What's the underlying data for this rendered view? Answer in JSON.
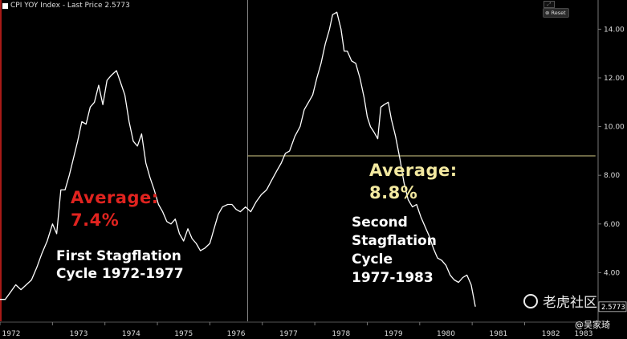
{
  "legend": {
    "label": "CPI YOY Index - Last Price 2.5773"
  },
  "controls": {
    "reset_label": "Reset"
  },
  "annotations": {
    "first_avg_label": "Average:",
    "first_avg_value": "7.4%",
    "first_cycle_line1": "First Stagflation",
    "first_cycle_line2": "Cycle 1972-1977",
    "second_avg_label": "Average:",
    "second_avg_value": "8.8%",
    "second_cycle_line1": "Second",
    "second_cycle_line2": "Stagflation",
    "second_cycle_line3": "Cycle",
    "second_cycle_line4": "1977-1983"
  },
  "watermark": {
    "text": "老虎社区",
    "handle": "@吴家琦"
  },
  "colors": {
    "line": "#ffffff",
    "first_highlight": "#e0231f",
    "second_highlight": "#f3e9a0",
    "average_line": "#d8d18a",
    "background": "#000000"
  },
  "chart_data": {
    "type": "line",
    "title": "",
    "xlabel": "",
    "ylabel": "",
    "x_ticks": [
      "1972",
      "1973",
      "1974",
      "1975",
      "1976",
      "1977",
      "1978",
      "1979",
      "1980",
      "1981",
      "1982",
      "1983"
    ],
    "y_ticks": [
      "4.00",
      "6.00",
      "8.00",
      "10.00",
      "12.00",
      "14.00"
    ],
    "ylim": [
      2.0,
      15.2
    ],
    "xlim": [
      1972.0,
      1983.4
    ],
    "last_price_label": "2.5773",
    "average_line": {
      "value": 8.8,
      "from_year": 1976.72,
      "to_year": 1983.35
    },
    "divider_year": 1976.72,
    "series": [
      {
        "values": [
          [
            1972.0,
            2.9
          ],
          [
            1972.1,
            2.9
          ],
          [
            1972.2,
            3.2
          ],
          [
            1972.3,
            3.5
          ],
          [
            1972.4,
            3.3
          ],
          [
            1972.5,
            3.5
          ],
          [
            1972.6,
            3.7
          ],
          [
            1972.7,
            4.2
          ],
          [
            1972.8,
            4.8
          ],
          [
            1972.9,
            5.3
          ],
          [
            1973.0,
            6.0
          ],
          [
            1973.08,
            5.6
          ],
          [
            1973.16,
            7.4
          ],
          [
            1973.24,
            7.4
          ],
          [
            1973.32,
            8.0
          ],
          [
            1973.4,
            8.7
          ],
          [
            1973.48,
            9.4
          ],
          [
            1973.56,
            10.2
          ],
          [
            1973.64,
            10.1
          ],
          [
            1973.72,
            10.8
          ],
          [
            1973.8,
            11.0
          ],
          [
            1973.88,
            11.7
          ],
          [
            1973.96,
            10.9
          ],
          [
            1974.04,
            11.9
          ],
          [
            1974.12,
            12.1
          ],
          [
            1974.22,
            12.3
          ],
          [
            1974.3,
            11.8
          ],
          [
            1974.38,
            11.3
          ],
          [
            1974.46,
            10.2
          ],
          [
            1974.54,
            9.4
          ],
          [
            1974.62,
            9.2
          ],
          [
            1974.7,
            9.7
          ],
          [
            1974.78,
            8.5
          ],
          [
            1974.86,
            7.9
          ],
          [
            1974.94,
            7.4
          ],
          [
            1975.02,
            6.8
          ],
          [
            1975.1,
            6.5
          ],
          [
            1975.18,
            6.1
          ],
          [
            1975.26,
            6.0
          ],
          [
            1975.34,
            6.2
          ],
          [
            1975.42,
            5.6
          ],
          [
            1975.5,
            5.3
          ],
          [
            1975.58,
            5.8
          ],
          [
            1975.66,
            5.4
          ],
          [
            1975.74,
            5.2
          ],
          [
            1975.82,
            4.9
          ],
          [
            1975.9,
            5.0
          ],
          [
            1976.0,
            5.2
          ],
          [
            1976.08,
            5.8
          ],
          [
            1976.16,
            6.4
          ],
          [
            1976.24,
            6.7
          ],
          [
            1976.34,
            6.8
          ],
          [
            1976.42,
            6.8
          ],
          [
            1976.5,
            6.6
          ],
          [
            1976.58,
            6.5
          ],
          [
            1976.68,
            6.7
          ],
          [
            1976.78,
            6.5
          ],
          [
            1976.88,
            6.9
          ],
          [
            1976.98,
            7.2
          ],
          [
            1977.08,
            7.4
          ],
          [
            1977.18,
            7.8
          ],
          [
            1977.28,
            8.2
          ],
          [
            1977.36,
            8.5
          ],
          [
            1977.44,
            8.9
          ],
          [
            1977.52,
            9.0
          ],
          [
            1977.62,
            9.6
          ],
          [
            1977.72,
            10.0
          ],
          [
            1977.8,
            10.7
          ],
          [
            1977.88,
            11.0
          ],
          [
            1977.96,
            11.3
          ],
          [
            1978.04,
            12.0
          ],
          [
            1978.12,
            12.6
          ],
          [
            1978.2,
            13.4
          ],
          [
            1978.28,
            14.0
          ],
          [
            1978.34,
            14.6
          ],
          [
            1978.42,
            14.7
          ],
          [
            1978.5,
            14.0
          ],
          [
            1978.56,
            13.1
          ],
          [
            1978.62,
            13.1
          ],
          [
            1978.7,
            12.7
          ],
          [
            1978.78,
            12.6
          ],
          [
            1978.86,
            12.0
          ],
          [
            1978.94,
            11.2
          ],
          [
            1979.0,
            10.4
          ],
          [
            1979.06,
            10.0
          ],
          [
            1979.12,
            9.8
          ],
          [
            1979.2,
            9.5
          ],
          [
            1979.26,
            10.8
          ],
          [
            1979.32,
            10.9
          ],
          [
            1979.4,
            11.0
          ],
          [
            1979.46,
            10.3
          ],
          [
            1979.54,
            9.6
          ],
          [
            1979.62,
            8.7
          ],
          [
            1979.7,
            7.7
          ],
          [
            1979.78,
            7.0
          ],
          [
            1979.86,
            6.7
          ],
          [
            1979.94,
            6.8
          ],
          [
            1980.02,
            6.3
          ],
          [
            1980.1,
            5.9
          ],
          [
            1980.18,
            5.5
          ],
          [
            1980.26,
            5.0
          ],
          [
            1980.34,
            4.6
          ],
          [
            1980.42,
            4.5
          ],
          [
            1980.5,
            4.3
          ],
          [
            1980.58,
            3.9
          ],
          [
            1980.66,
            3.7
          ],
          [
            1980.74,
            3.6
          ],
          [
            1980.82,
            3.8
          ],
          [
            1980.9,
            3.9
          ],
          [
            1980.98,
            3.5
          ],
          [
            1981.06,
            2.6
          ]
        ]
      }
    ],
    "x_positions_note": ""
  }
}
